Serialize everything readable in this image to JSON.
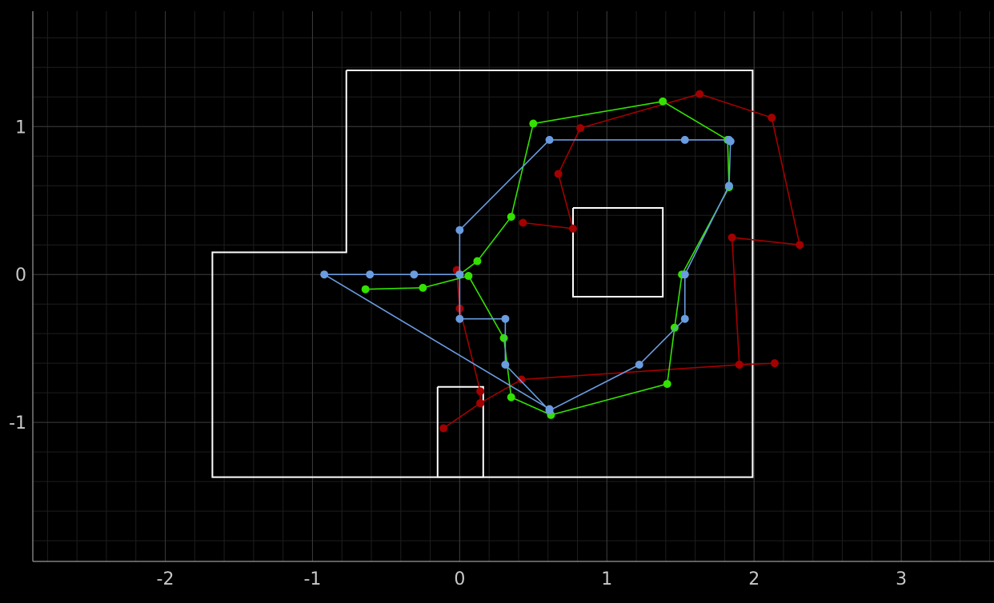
{
  "chart_data": {
    "type": "line",
    "title": "",
    "xlabel": "",
    "ylabel": "",
    "xlim": [
      -2.9,
      3.63
    ],
    "ylim": [
      -1.94,
      1.78
    ],
    "grid": true,
    "x_ticks": [
      -2,
      -1,
      0,
      1,
      2,
      3
    ],
    "x_tick_labels": [
      "-2",
      "-1",
      "0",
      "1",
      "2",
      "3"
    ],
    "y_ticks": [
      -1,
      0,
      1
    ],
    "y_tick_labels": [
      "-1",
      "0",
      "1"
    ],
    "colors": {
      "background": "#000000",
      "grid_major": "#3a3a3a",
      "grid_minor": "#1e1e1e",
      "axis": "#9a9a9a",
      "tick_text": "#c8c8c8"
    },
    "outlines": [
      {
        "points": [
          [
            -0.77,
            1.38
          ],
          [
            1.99,
            1.38
          ],
          [
            1.99,
            -1.37
          ],
          [
            -1.68,
            -1.37
          ],
          [
            -1.68,
            0.15
          ],
          [
            -0.77,
            0.15
          ],
          [
            -0.77,
            1.38
          ]
        ],
        "color": "#ffffff"
      },
      {
        "points": [
          [
            0.77,
            0.45
          ],
          [
            1.38,
            0.45
          ],
          [
            1.38,
            -0.15
          ],
          [
            0.77,
            -0.15
          ],
          [
            0.77,
            0.45
          ]
        ],
        "color": "#ffffff"
      },
      {
        "points": [
          [
            -0.15,
            -0.76
          ],
          [
            0.16,
            -0.76
          ],
          [
            0.16,
            -1.37
          ],
          [
            -0.15,
            -1.37
          ],
          [
            -0.15,
            -0.76
          ]
        ],
        "color": "#ffffff"
      }
    ],
    "series": [
      {
        "color": "#a30000",
        "points": [
          [
            -0.02,
            0.03
          ],
          [
            0.0,
            -0.23
          ],
          [
            0.14,
            -0.79
          ],
          [
            0.14,
            -0.87
          ],
          [
            -0.11,
            -1.04
          ],
          [
            0.14,
            -0.87
          ],
          [
            0.42,
            -0.71
          ],
          [
            1.9,
            -0.61
          ],
          [
            2.14,
            -0.6
          ],
          [
            1.9,
            -0.61
          ],
          [
            1.85,
            0.25
          ],
          [
            2.31,
            0.2
          ],
          [
            2.12,
            1.06
          ],
          [
            1.63,
            1.22
          ],
          [
            0.82,
            0.99
          ],
          [
            0.67,
            0.68
          ],
          [
            0.77,
            0.31
          ],
          [
            0.43,
            0.35
          ]
        ]
      },
      {
        "color": "#33e200",
        "points": [
          [
            -0.64,
            -0.1
          ],
          [
            -0.25,
            -0.09
          ],
          [
            0.06,
            -0.01
          ],
          [
            0.3,
            -0.43
          ],
          [
            0.35,
            -0.83
          ],
          [
            0.62,
            -0.95
          ],
          [
            1.41,
            -0.74
          ],
          [
            1.46,
            -0.36
          ],
          [
            1.51,
            0.0
          ],
          [
            1.83,
            0.59
          ],
          [
            1.82,
            0.91
          ],
          [
            1.38,
            1.17
          ],
          [
            0.5,
            1.02
          ],
          [
            0.35,
            0.39
          ],
          [
            0.12,
            0.09
          ],
          [
            0.0,
            0.0
          ]
        ]
      },
      {
        "color": "#6a9ce0",
        "points": [
          [
            0.0,
            0.0
          ],
          [
            0.0,
            0.3
          ],
          [
            0.61,
            0.91
          ],
          [
            1.53,
            0.91
          ],
          [
            1.83,
            0.91
          ],
          [
            1.84,
            0.9
          ],
          [
            1.83,
            0.6
          ],
          [
            1.53,
            0.0
          ],
          [
            1.53,
            -0.3
          ],
          [
            1.22,
            -0.61
          ],
          [
            0.61,
            -0.92
          ],
          [
            0.31,
            -0.61
          ],
          [
            0.31,
            -0.3
          ],
          [
            0.0,
            -0.3
          ],
          [
            0.0,
            0.0
          ],
          [
            -0.31,
            0.0
          ],
          [
            -0.61,
            0.0
          ],
          [
            -0.92,
            0.0
          ],
          [
            0.61,
            -0.91
          ]
        ]
      }
    ]
  }
}
